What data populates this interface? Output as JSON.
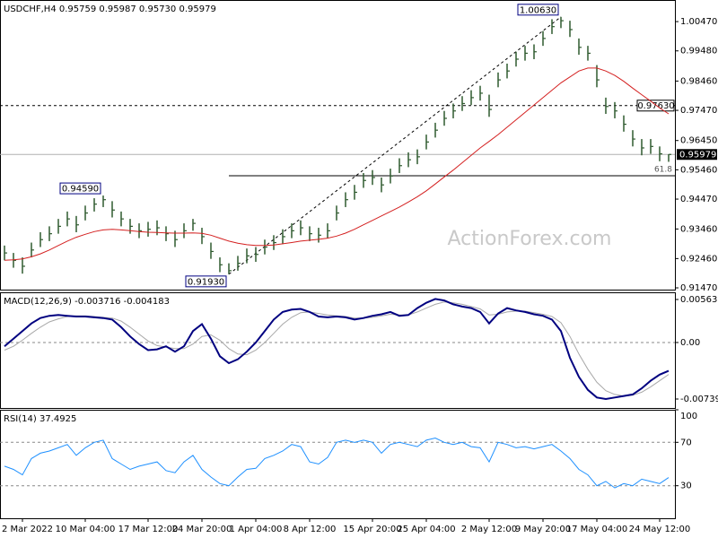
{
  "watermark": "ActionForex.com",
  "chart_data": [
    {
      "type": "price-bars",
      "title": "USDCHF,H4  0.95759 0.95987 0.95730 0.95979",
      "bar_color": "#2f5a2f",
      "categories": [
        null,
        null,
        "2 Mar 2022",
        null,
        null,
        null,
        null,
        null,
        null,
        "10 Mar 04:00",
        null,
        null,
        null,
        null,
        null,
        null,
        "17 Mar 12:00",
        null,
        null,
        null,
        null,
        null,
        "24 Mar 20:00",
        null,
        null,
        null,
        null,
        null,
        "1 Apr 04:00",
        null,
        null,
        null,
        null,
        null,
        "8 Apr 12:00",
        null,
        null,
        null,
        null,
        null,
        null,
        "15 Apr 20:00",
        null,
        null,
        null,
        null,
        null,
        "25 Apr 04:00",
        null,
        null,
        null,
        null,
        null,
        null,
        "2 May 12:00",
        null,
        null,
        null,
        null,
        null,
        "9 May 20:00",
        null,
        null,
        null,
        null,
        null,
        "17 May 04:00",
        null,
        null,
        null,
        null,
        null,
        null,
        "24 May 12:00",
        null
      ],
      "high": [
        0.929,
        0.9265,
        0.925,
        0.93,
        0.9335,
        0.9355,
        0.938,
        0.9405,
        0.939,
        0.9425,
        0.945,
        0.9459,
        0.944,
        0.9405,
        0.938,
        0.9365,
        0.937,
        0.9375,
        0.9355,
        0.934,
        0.9365,
        0.938,
        0.935,
        0.93,
        0.925,
        0.923,
        0.9255,
        0.928,
        0.9285,
        0.931,
        0.9325,
        0.9345,
        0.9365,
        0.9375,
        0.9355,
        0.935,
        0.9365,
        0.9425,
        0.947,
        0.9495,
        0.9535,
        0.9545,
        0.952,
        0.955,
        0.9585,
        0.9605,
        0.9615,
        0.9665,
        0.9705,
        0.9745,
        0.977,
        0.9795,
        0.9815,
        0.983,
        0.98,
        0.9875,
        0.9905,
        0.9945,
        0.9965,
        0.997,
        1.0015,
        1.0055,
        1.0063,
        1.005,
        0.999,
        0.9965,
        0.99,
        0.979,
        0.9775,
        0.973,
        0.968,
        0.965,
        0.965,
        0.9625,
        0.95987
      ],
      "low": [
        0.924,
        0.9215,
        0.9195,
        0.925,
        0.9285,
        0.9305,
        0.933,
        0.9355,
        0.9335,
        0.9375,
        0.9405,
        0.942,
        0.9385,
        0.9355,
        0.933,
        0.9315,
        0.932,
        0.9325,
        0.9305,
        0.9285,
        0.9315,
        0.934,
        0.9295,
        0.9245,
        0.92,
        0.9193,
        0.9205,
        0.923,
        0.9235,
        0.926,
        0.9275,
        0.9295,
        0.9315,
        0.9325,
        0.9305,
        0.93,
        0.9315,
        0.9375,
        0.942,
        0.9445,
        0.9485,
        0.9495,
        0.947,
        0.95,
        0.9535,
        0.9555,
        0.9565,
        0.9615,
        0.9655,
        0.9695,
        0.972,
        0.9745,
        0.9765,
        0.978,
        0.9725,
        0.9825,
        0.9855,
        0.9895,
        0.9915,
        0.992,
        0.9965,
        1.0005,
        1.0025,
        0.9995,
        0.9935,
        0.9915,
        0.9825,
        0.9735,
        0.972,
        0.9675,
        0.9625,
        0.9595,
        0.96,
        0.9575,
        0.9573
      ],
      "close": [
        0.9265,
        0.924,
        0.922,
        0.9275,
        0.931,
        0.933,
        0.9355,
        0.938,
        0.936,
        0.94,
        0.943,
        0.9445,
        0.941,
        0.938,
        0.9355,
        0.934,
        0.9345,
        0.935,
        0.933,
        0.931,
        0.934,
        0.9365,
        0.932,
        0.927,
        0.9225,
        0.9205,
        0.923,
        0.9255,
        0.926,
        0.9285,
        0.93,
        0.932,
        0.934,
        0.935,
        0.933,
        0.9325,
        0.934,
        0.94,
        0.9445,
        0.947,
        0.951,
        0.952,
        0.9495,
        0.9525,
        0.956,
        0.958,
        0.959,
        0.964,
        0.968,
        0.972,
        0.9745,
        0.977,
        0.979,
        0.9805,
        0.975,
        0.985,
        0.988,
        0.992,
        0.994,
        0.9945,
        0.999,
        1.003,
        1.005,
        1.002,
        0.996,
        0.994,
        0.985,
        0.976,
        0.9745,
        0.97,
        0.965,
        0.962,
        0.9625,
        0.96,
        0.95979
      ],
      "moving_average": {
        "color": "#d42020",
        "values": [
          0.924,
          0.9242,
          0.9245,
          0.9252,
          0.9262,
          0.9275,
          0.929,
          0.9305,
          0.9318,
          0.9328,
          0.9337,
          0.9343,
          0.9345,
          0.9343,
          0.934,
          0.9337,
          0.9335,
          0.9334,
          0.9333,
          0.9332,
          0.9332,
          0.9333,
          0.9331,
          0.9325,
          0.9315,
          0.9305,
          0.9298,
          0.9293,
          0.929,
          0.929,
          0.9292,
          0.9296,
          0.93,
          0.9305,
          0.9308,
          0.9311,
          0.9315,
          0.9322,
          0.9332,
          0.9345,
          0.936,
          0.9375,
          0.939,
          0.9405,
          0.942,
          0.9437,
          0.9455,
          0.9475,
          0.9498,
          0.9522,
          0.9545,
          0.957,
          0.9595,
          0.962,
          0.9642,
          0.9665,
          0.969,
          0.9715,
          0.974,
          0.9765,
          0.979,
          0.9815,
          0.984,
          0.986,
          0.988,
          0.989,
          0.989,
          0.988,
          0.9865,
          0.9845,
          0.9822,
          0.98,
          0.9778,
          0.9755,
          0.9735
        ]
      },
      "levels": [
        {
          "value": 0.9763,
          "label": "0.97630",
          "style": "dashed"
        },
        {
          "value": 0.95979,
          "label": "0.95979",
          "style": "current"
        },
        {
          "value": 0.9526,
          "label": "61.8",
          "style": "fib"
        }
      ],
      "swing_labels": [
        {
          "value": 0.9459,
          "label": "0.94590"
        },
        {
          "value": 0.9193,
          "label": "0.91930"
        },
        {
          "value": 1.0063,
          "label": "1.00630"
        }
      ],
      "ylim": [
        0.9141,
        1.012
      ],
      "yticks": [
        {
          "value": 1.0047,
          "label": "1.00470"
        },
        {
          "value": 0.9948,
          "label": "0.99480"
        },
        {
          "value": 0.9846,
          "label": "0.98460"
        },
        {
          "value": 0.9747,
          "label": "0.97470"
        },
        {
          "value": 0.9645,
          "label": "0.96450"
        },
        {
          "value": 0.9546,
          "label": "0.95460"
        },
        {
          "value": 0.9447,
          "label": "0.94470"
        },
        {
          "value": 0.9346,
          "label": "0.93460"
        },
        {
          "value": 0.9246,
          "label": "0.92460"
        },
        {
          "value": 0.9147,
          "label": "0.91470"
        }
      ]
    },
    {
      "type": "macd",
      "title": "MACD(12,26,9) -0.003716 -0.004183",
      "macd": {
        "color": "#000080",
        "values": [
          -0.0005,
          0.0005,
          0.0015,
          0.0025,
          0.0032,
          0.0035,
          0.0036,
          0.0035,
          0.0034,
          0.0034,
          0.0033,
          0.0032,
          0.003,
          0.002,
          0.0008,
          -0.0002,
          -0.001,
          -0.0009,
          -0.0005,
          -0.0012,
          -0.0005,
          0.0015,
          0.0024,
          0.0005,
          -0.0018,
          -0.0027,
          -0.0022,
          -0.0012,
          0.0,
          0.0015,
          0.003,
          0.004,
          0.0043,
          0.0044,
          0.004,
          0.0034,
          0.0033,
          0.0034,
          0.0033,
          0.003,
          0.0032,
          0.0035,
          0.0037,
          0.004,
          0.0035,
          0.0036,
          0.0045,
          0.0052,
          0.0057,
          0.0055,
          0.005,
          0.0047,
          0.0045,
          0.004,
          0.0025,
          0.0038,
          0.0045,
          0.0042,
          0.004,
          0.0037,
          0.0035,
          0.003,
          0.0015,
          -0.002,
          -0.0045,
          -0.0062,
          -0.0072,
          -0.0074,
          -0.0072,
          -0.007,
          -0.0068,
          -0.006,
          -0.005,
          -0.0042,
          -0.003716
        ]
      },
      "signal": {
        "color": "#a8a8a8",
        "values": [
          -0.001,
          -0.0005,
          0.0003,
          0.0012,
          0.002,
          0.0027,
          0.0031,
          0.0034,
          0.0035,
          0.0035,
          0.0034,
          0.0033,
          0.0032,
          0.0028,
          0.002,
          0.0011,
          0.0002,
          -0.0004,
          -0.0006,
          -0.0008,
          -0.0008,
          -0.0002,
          0.0008,
          0.001,
          0.0003,
          -0.0008,
          -0.0015,
          -0.0016,
          -0.001,
          0.0,
          0.0012,
          0.0024,
          0.0033,
          0.0039,
          0.004,
          0.0038,
          0.0036,
          0.0035,
          0.0034,
          0.0032,
          0.0032,
          0.0033,
          0.0035,
          0.0037,
          0.0036,
          0.0036,
          0.004,
          0.0045,
          0.005,
          0.0053,
          0.0052,
          0.005,
          0.0047,
          0.0044,
          0.0036,
          0.0037,
          0.004,
          0.0041,
          0.0041,
          0.0039,
          0.0037,
          0.0034,
          0.0026,
          0.0008,
          -0.0015,
          -0.0035,
          -0.0052,
          -0.0063,
          -0.0068,
          -0.007,
          -0.0069,
          -0.0065,
          -0.0058,
          -0.005,
          -0.004183
        ]
      },
      "levels": [
        0
      ],
      "ylim": [
        -0.00857,
        0.00657
      ],
      "yticks": [
        0.005632,
        {
          "value": 0,
          "label": "0.00"
        },
        -0.007395
      ]
    },
    {
      "type": "line",
      "title": "RSI(14) 37.4925",
      "color": "#1e90ff",
      "values": [
        48,
        45,
        40,
        55,
        60,
        62,
        65,
        68,
        58,
        65,
        70,
        72,
        55,
        50,
        45,
        48,
        50,
        52,
        44,
        42,
        52,
        58,
        45,
        38,
        32,
        30,
        38,
        45,
        46,
        55,
        58,
        62,
        68,
        66,
        52,
        50,
        56,
        70,
        72,
        70,
        72,
        70,
        60,
        68,
        70,
        68,
        66,
        72,
        74,
        70,
        68,
        70,
        66,
        65,
        52,
        70,
        68,
        65,
        66,
        64,
        66,
        68,
        62,
        55,
        45,
        40,
        30,
        34,
        28,
        32,
        30,
        36,
        34,
        32,
        37.4925
      ],
      "levels": [
        70,
        30
      ],
      "ylim": [
        0,
        100
      ],
      "yticks": [
        100,
        70,
        30
      ]
    }
  ]
}
